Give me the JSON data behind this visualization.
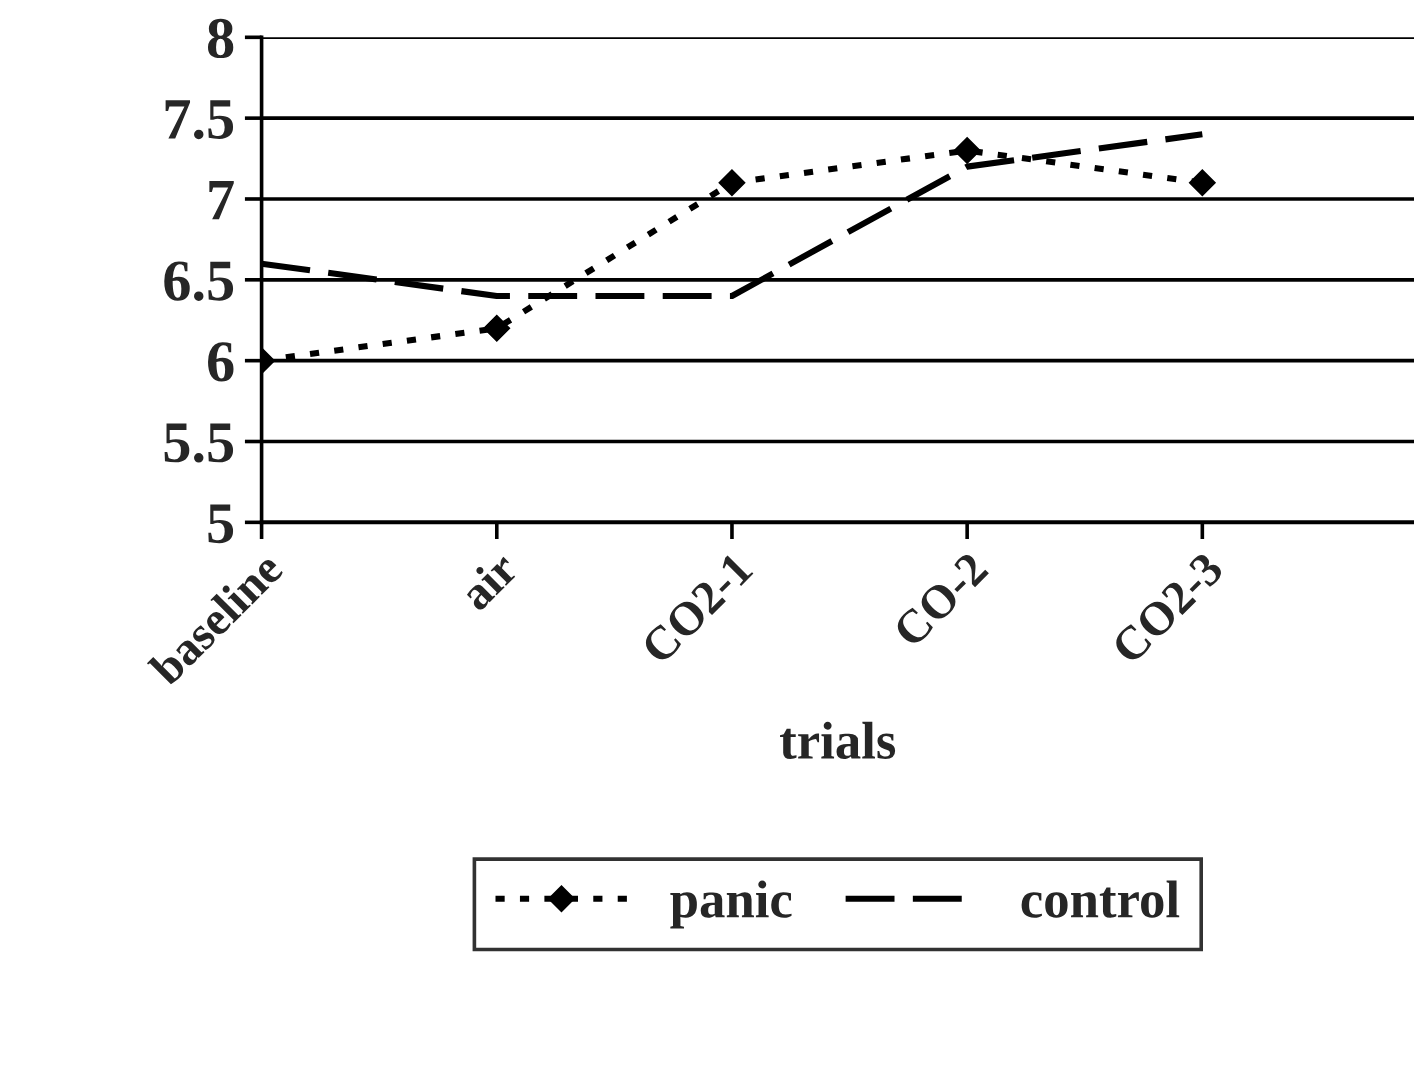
{
  "chart_data": {
    "type": "line",
    "xlabel": "trials",
    "categories": [
      "baseline",
      "air",
      "CO2-1",
      "CO-2",
      "CO2-3"
    ],
    "series": [
      {
        "name": "panic",
        "color": "#000000",
        "values": [
          6.0,
          6.2,
          7.1,
          7.3,
          7.1
        ],
        "marker": "diamond",
        "line_style": "dotted"
      },
      {
        "name": "control",
        "color": "#000000",
        "values": [
          6.6,
          6.4,
          6.4,
          7.2,
          7.4
        ],
        "marker": "none",
        "line_style": "dashed"
      }
    ],
    "ylim": [
      5,
      8
    ],
    "yticks": [
      5,
      5.5,
      6,
      6.5,
      7,
      7.5,
      8
    ],
    "grid": "y",
    "legend": "bottom"
  }
}
